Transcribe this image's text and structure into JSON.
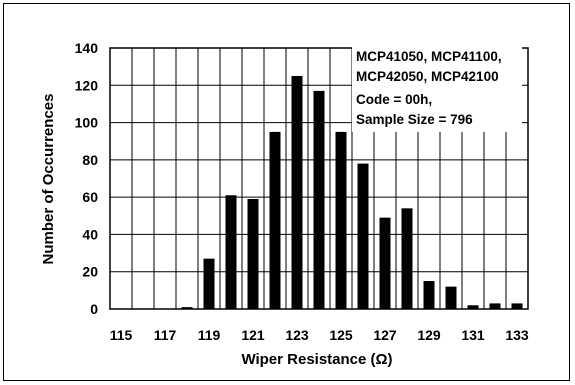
{
  "chart_data": {
    "type": "bar",
    "xlabel": "Wiper Resistance (Ω)",
    "ylabel": "Number of Occurrences",
    "categories": [
      "115",
      "116",
      "117",
      "118",
      "119",
      "120",
      "121",
      "122",
      "123",
      "124",
      "125",
      "126",
      "127",
      "128",
      "129",
      "130",
      "131",
      "132",
      "133"
    ],
    "x_tick_labels": [
      "115",
      "117",
      "119",
      "121",
      "123",
      "125",
      "127",
      "129",
      "131",
      "133"
    ],
    "values": [
      0,
      0,
      0,
      1,
      27,
      61,
      59,
      95,
      125,
      117,
      95,
      78,
      49,
      54,
      15,
      12,
      2,
      3,
      3
    ],
    "ylim": [
      0,
      140
    ],
    "y_ticks": [
      0,
      20,
      40,
      60,
      80,
      100,
      120,
      140
    ],
    "grid": true,
    "bar_color": "#000000",
    "annotation_lines": [
      "MCP41050, MCP41100,",
      "MCP42050, MCP42100",
      "Code = 00h,",
      "Sample Size = 796"
    ]
  }
}
